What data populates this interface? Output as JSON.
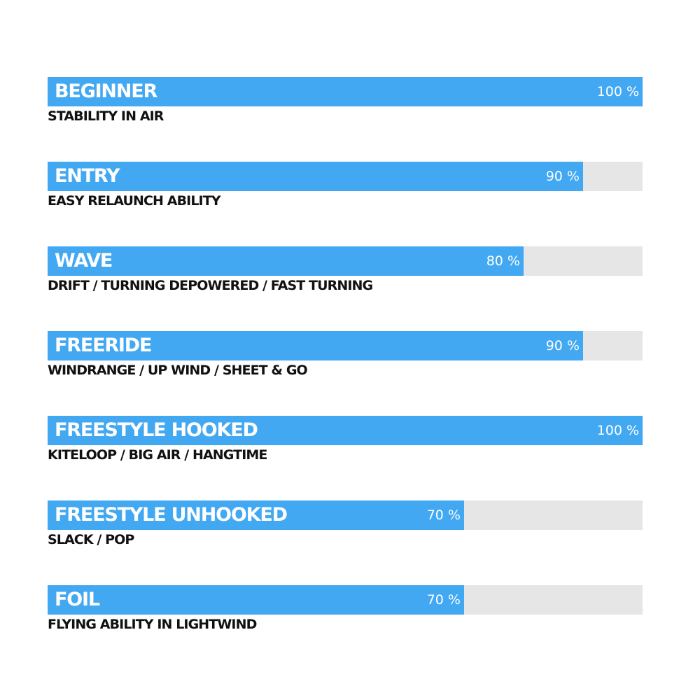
{
  "chart_data": {
    "type": "bar",
    "orientation": "horizontal",
    "xlim": [
      0,
      100
    ],
    "unit": "%",
    "colors": {
      "fill": "#42a8f2",
      "track": "#e6e6e6",
      "label": "#ffffff",
      "subtitle": "#111111"
    },
    "items": [
      {
        "label": "BEGINNER",
        "subtitle": "STABILITY IN AIR",
        "value": 100,
        "value_label": "100 %"
      },
      {
        "label": "ENTRY",
        "subtitle": "EASY RELAUNCH ABILITY",
        "value": 90,
        "value_label": "90 %"
      },
      {
        "label": "WAVE",
        "subtitle": "DRIFT / TURNING DEPOWERED / FAST TURNING",
        "value": 80,
        "value_label": "80 %"
      },
      {
        "label": "FREERIDE",
        "subtitle": "WINDRANGE / UP WIND / SHEET & GO",
        "value": 90,
        "value_label": "90 %"
      },
      {
        "label": "FREESTYLE HOOKED",
        "subtitle": "KITELOOP / BIG AIR / HANGTIME",
        "value": 100,
        "value_label": "100 %"
      },
      {
        "label": "FREESTYLE UNHOOKED",
        "subtitle": "SLACK / POP",
        "value": 70,
        "value_label": "70 %"
      },
      {
        "label": "FOIL",
        "subtitle": "FLYING ABILITY IN LIGHTWIND",
        "value": 70,
        "value_label": "70 %"
      }
    ]
  }
}
